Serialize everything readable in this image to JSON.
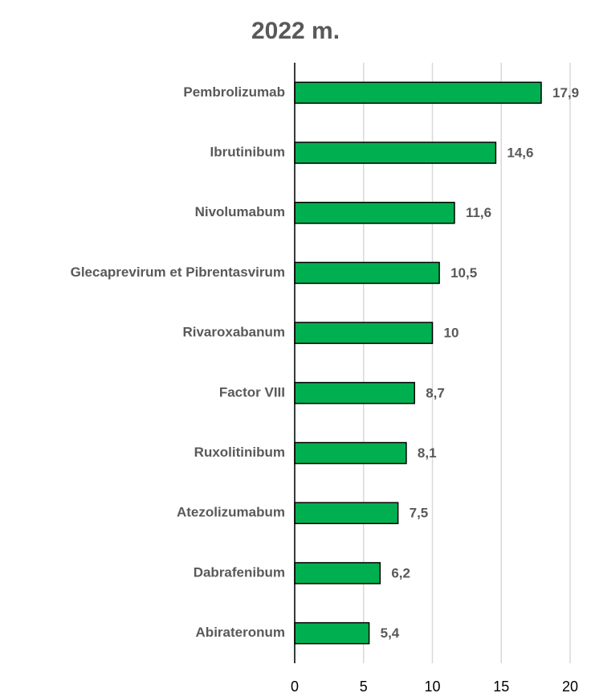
{
  "chart_data": {
    "type": "barh",
    "title": "2022 m.",
    "categories": [
      "Pembrolizumab",
      "Ibrutinibum",
      "Nivolumabum",
      "Glecaprevirum et Pibrentasvirum",
      "Rivaroxabanum",
      "Factor VIII",
      "Ruxolitinibum",
      "Atezolizumabum",
      "Dabrafenibum",
      "Abirateronum"
    ],
    "values": [
      17.9,
      14.6,
      11.6,
      10.5,
      10,
      8.7,
      8.1,
      7.5,
      6.2,
      5.4
    ],
    "value_labels": [
      "17,9",
      "14,6",
      "11,6",
      "10,5",
      "10",
      "8,7",
      "8,1",
      "7,5",
      "6,2",
      "5,4"
    ],
    "color": "#00b050",
    "xlim": [
      0,
      20
    ],
    "xticks": [
      0,
      5,
      10,
      15,
      20
    ],
    "grid": true
  }
}
